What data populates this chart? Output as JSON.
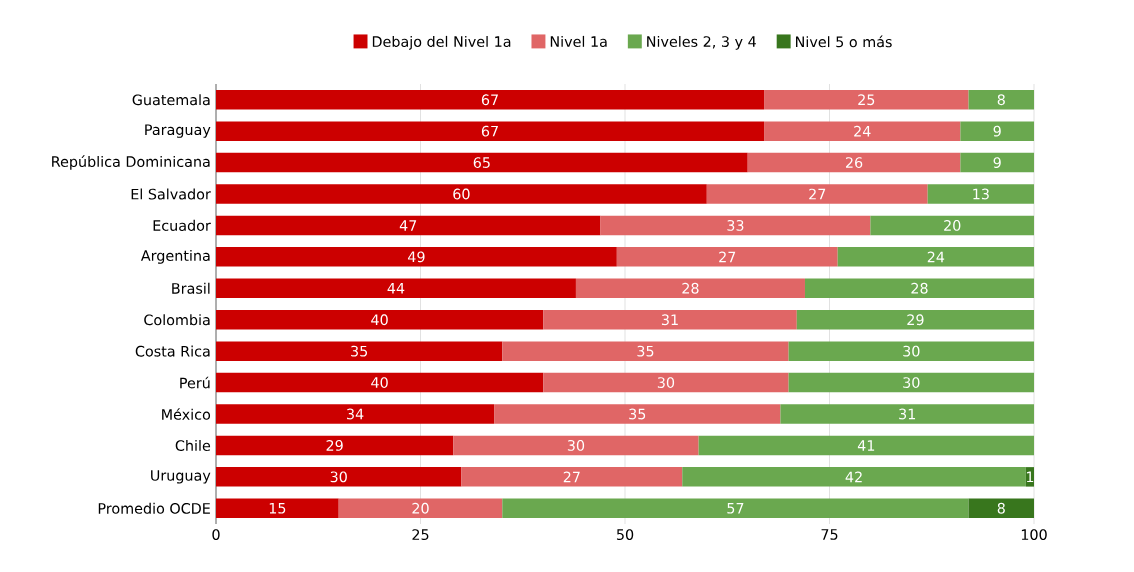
{
  "chart_data": {
    "type": "bar",
    "orientation": "horizontal",
    "stacked": true,
    "data_labels": true,
    "grid": "x",
    "legend": "top",
    "categories": [
      "Guatemala",
      "Paraguay",
      "República Dominicana",
      "El Salvador",
      "Ecuador",
      "Argentina",
      "Brasil",
      "Colombia",
      "Costa Rica",
      "Perú",
      "México",
      "Chile",
      "Uruguay",
      "Promedio OCDE"
    ],
    "xlim": [
      0,
      100
    ],
    "xticks": [
      0,
      25,
      50,
      75,
      100
    ],
    "series": [
      {
        "name": "Debajo del Nivel 1a",
        "color": "#cc0000",
        "values": [
          67,
          67,
          65,
          60,
          47,
          49,
          44,
          40,
          35,
          40,
          34,
          29,
          30,
          15
        ]
      },
      {
        "name": "Nivel 1a",
        "color": "#e06666",
        "values": [
          25,
          24,
          26,
          27,
          33,
          27,
          28,
          31,
          35,
          30,
          35,
          30,
          27,
          20
        ]
      },
      {
        "name": "Niveles 2, 3 y 4",
        "color": "#6aa84f",
        "values": [
          8,
          9,
          9,
          13,
          20,
          24,
          28,
          29,
          30,
          30,
          31,
          41,
          42,
          57
        ]
      },
      {
        "name": "Nivel 5 o más",
        "color": "#38761d",
        "values": [
          null,
          null,
          null,
          null,
          null,
          null,
          null,
          null,
          null,
          null,
          null,
          null,
          1,
          8
        ]
      }
    ]
  }
}
